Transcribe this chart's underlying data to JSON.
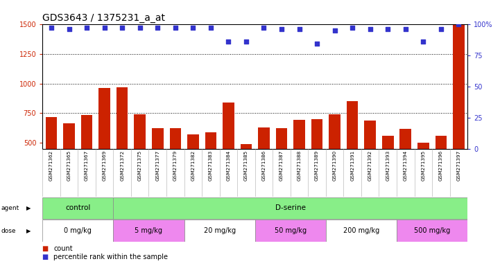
{
  "title": "GDS3643 / 1375231_a_at",
  "samples": [
    "GSM271362",
    "GSM271365",
    "GSM271367",
    "GSM271369",
    "GSM271372",
    "GSM271375",
    "GSM271377",
    "GSM271379",
    "GSM271382",
    "GSM271383",
    "GSM271384",
    "GSM271385",
    "GSM271386",
    "GSM271387",
    "GSM271388",
    "GSM271389",
    "GSM271390",
    "GSM271391",
    "GSM271392",
    "GSM271393",
    "GSM271394",
    "GSM271395",
    "GSM271396",
    "GSM271397"
  ],
  "counts": [
    720,
    665,
    735,
    960,
    970,
    740,
    625,
    625,
    575,
    590,
    840,
    490,
    630,
    625,
    695,
    700,
    740,
    850,
    690,
    560,
    620,
    500,
    560,
    1490
  ],
  "percentile_ranks": [
    97,
    96,
    97,
    97,
    97,
    97,
    97,
    97,
    97,
    97,
    86,
    86,
    97,
    96,
    96,
    84,
    95,
    97,
    96,
    96,
    96,
    86,
    96,
    100
  ],
  "bar_color": "#cc2200",
  "dot_color": "#3333cc",
  "ylim_left": [
    450,
    1500
  ],
  "ylim_right": [
    0,
    100
  ],
  "yticks_left": [
    500,
    750,
    1000,
    1250,
    1500
  ],
  "yticks_right": [
    0,
    25,
    50,
    75,
    100
  ],
  "agent_groups": [
    {
      "label": "control",
      "start": 0,
      "end": 4,
      "color": "#88ee88"
    },
    {
      "label": "D-serine",
      "start": 4,
      "end": 24,
      "color": "#88ee88"
    }
  ],
  "dose_groups": [
    {
      "label": "0 mg/kg",
      "start": 0,
      "end": 4,
      "color": "#ffffff"
    },
    {
      "label": "5 mg/kg",
      "start": 4,
      "end": 8,
      "color": "#ee88ee"
    },
    {
      "label": "20 mg/kg",
      "start": 8,
      "end": 12,
      "color": "#ffffff"
    },
    {
      "label": "50 mg/kg",
      "start": 12,
      "end": 16,
      "color": "#ee88ee"
    },
    {
      "label": "200 mg/kg",
      "start": 16,
      "end": 20,
      "color": "#ffffff"
    },
    {
      "label": "500 mg/kg",
      "start": 20,
      "end": 24,
      "color": "#ee88ee"
    }
  ],
  "legend_count_label": "count",
  "legend_pct_label": "percentile rank within the sample",
  "bg_color": "#ffffff",
  "title_fontsize": 10,
  "tick_fontsize": 7,
  "label_fontsize": 7
}
